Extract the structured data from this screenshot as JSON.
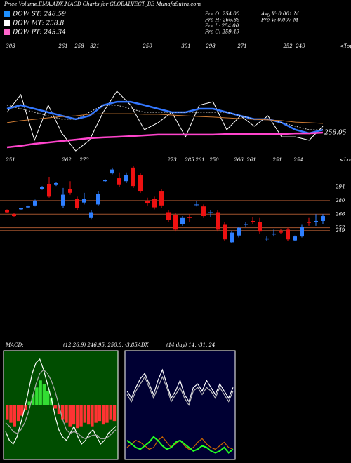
{
  "header": {
    "title": "Price,Volume,EMA,ADX,MACD Charts for GLOBALVECT_BE MunafaSutra.com"
  },
  "legend": [
    {
      "label": "DOW ST: 248.59",
      "color": "#1e90ff"
    },
    {
      "label": "DOW MT: 258.8",
      "color": "#ffffff"
    },
    {
      "label": "DOW PT: 245.34",
      "color": "#ff66cc"
    }
  ],
  "stats": [
    "Pre O: 254.00",
    "Pre H: 266.85",
    "Pre L: 254.00",
    "Pre C: 259.49",
    "Avg V: 0.001 M",
    "Pre V: 0.007 M"
  ],
  "chart_data": [
    {
      "type": "line",
      "ylim": [
        243,
        305
      ],
      "tops": [
        303,
        261,
        258,
        321,
        250,
        301,
        298,
        271,
        252,
        249
      ],
      "tops_label": "<Tops",
      "lows": [
        251,
        262,
        273,
        273,
        285,
        261,
        250,
        266,
        261,
        251,
        254
      ],
      "lows_label": "<Lows",
      "end_label": "258.05",
      "series": [
        {
          "color": "#ffffff",
          "style": "solid",
          "values": [
            269.3,
            278.7,
            254.3,
            273.1,
            258.0,
            248.6,
            254.3,
            269.3,
            280.6,
            273.1,
            259.9,
            263.7,
            269.3,
            256.1,
            273.1,
            274.9,
            259.9,
            267.4,
            261.8,
            267.4,
            256.1,
            256.1,
            254.3,
            261.8
          ]
        },
        {
          "color": "#3377ff",
          "style": "thick",
          "values": [
            271.2,
            273.1,
            271.2,
            269.3,
            267.4,
            265.6,
            267.4,
            273.1,
            274.9,
            274.9,
            273.1,
            271.2,
            269.3,
            269.3,
            271.2,
            271.2,
            269.3,
            267.4,
            265.6,
            265.6,
            263.7,
            259.9,
            258.0,
            259.9
          ]
        },
        {
          "color": "#dddddd",
          "style": "dashed",
          "values": [
            273.1,
            271.2,
            269.3,
            267.4,
            265.6,
            265.6,
            269.3,
            273.1,
            273.1,
            271.2,
            269.3,
            269.3,
            269.3,
            269.3,
            269.3,
            269.3,
            269.3,
            267.4,
            265.6,
            265.6,
            263.7,
            261.8,
            259.9,
            259.9
          ]
        },
        {
          "color": "#cc7a33",
          "style": "solid",
          "values": [
            263.7,
            264.8,
            265.5,
            266.3,
            267.0,
            267.4,
            268.2,
            268.5,
            268.5,
            268.5,
            268.2,
            268.2,
            267.8,
            267.4,
            267.0,
            266.7,
            266.3,
            265.9,
            265.5,
            265.2,
            264.8,
            264.0,
            263.7,
            263.3
          ]
        },
        {
          "color": "#ff44cc",
          "style": "thick",
          "values": [
            250.5,
            251.3,
            252.4,
            253.1,
            253.9,
            254.6,
            255.4,
            255.8,
            256.1,
            256.5,
            256.9,
            257.3,
            257.3,
            257.3,
            257.3,
            257.3,
            257.6,
            257.6,
            257.6,
            257.6,
            257.6,
            258.0,
            258.0,
            258.4
          ]
        }
      ]
    },
    {
      "type": "candlestick",
      "ylim": [
        212,
        324
      ],
      "yticks": [
        294,
        280,
        266,
        252,
        249
      ],
      "grid_color": "#a0522d",
      "up_color": "#2f7fff",
      "down_color": "#ee1111",
      "open": [
        270,
        266,
        271,
        273,
        275,
        292,
        297,
        296,
        275,
        292,
        282,
        278,
        262,
        276,
        300,
        308,
        303,
        300,
        314,
        306,
        280,
        282,
        290,
        268,
        265,
        256,
        263,
        276,
        274,
        267,
        268,
        255,
        237,
        244,
        255,
        259,
        258,
        240,
        245,
        248,
        250,
        239,
        243,
        258,
        258,
        259
      ],
      "close": [
        268,
        264,
        272,
        274,
        280,
        294,
        284,
        298,
        286,
        288,
        272,
        282,
        268,
        287,
        301,
        312,
        296,
        306,
        295,
        290,
        277,
        273,
        275,
        260,
        250,
        262,
        262,
        276,
        264,
        268,
        250,
        240,
        247,
        252,
        256,
        258,
        248,
        241,
        246,
        247,
        240,
        243,
        253,
        257,
        259,
        264
      ],
      "high": [
        271,
        267,
        272,
        275,
        281,
        295,
        304,
        299,
        293,
        300,
        284,
        288,
        270,
        290,
        302,
        314,
        309,
        309,
        316,
        308,
        283,
        284,
        292,
        270,
        267,
        264,
        266,
        280,
        276,
        270,
        270,
        258,
        249,
        253,
        258,
        263,
        262,
        243,
        250,
        251,
        252,
        244,
        255,
        262,
        266,
        266
      ],
      "low": [
        267,
        263,
        270,
        272,
        274,
        291,
        283,
        295,
        272,
        286,
        270,
        276,
        261,
        275,
        299,
        307,
        294,
        298,
        293,
        288,
        275,
        271,
        272,
        258,
        248,
        254,
        258,
        274,
        262,
        263,
        248,
        238,
        236,
        242,
        253,
        256,
        246,
        238,
        243,
        246,
        238,
        238,
        242,
        254,
        254,
        256
      ]
    },
    {
      "type": "macd",
      "title": "MACD:",
      "subtitle": "(12,26,9) 246.95, 250.8, -3.85",
      "ylim": [
        -30,
        30
      ],
      "up_color": "#33dd33",
      "down_color": "#ff3333",
      "histogram": [
        -8,
        -10,
        -12,
        -9,
        -6,
        -3,
        2,
        6,
        10,
        14,
        12,
        8,
        4,
        -2,
        -5,
        -8,
        -10,
        -12,
        -11,
        -13,
        -12,
        -10,
        -11,
        -12,
        -10,
        -9,
        -11,
        -10,
        -8,
        -9
      ],
      "series": [
        {
          "color": "#ffffff",
          "values": [
            -15,
            -20,
            -22,
            -18,
            -10,
            -2,
            8,
            18,
            24,
            26,
            20,
            12,
            4,
            -6,
            -14,
            -18,
            -20,
            -16,
            -12,
            -18,
            -22,
            -20,
            -16,
            -14,
            -18,
            -22,
            -20,
            -16,
            -14,
            -12
          ]
        },
        {
          "color": "#aaaaaa",
          "values": [
            -10,
            -12,
            -15,
            -16,
            -14,
            -10,
            -4,
            4,
            12,
            18,
            20,
            18,
            14,
            8,
            0,
            -8,
            -14,
            -16,
            -15,
            -16,
            -18,
            -19,
            -18,
            -17,
            -17,
            -19,
            -19,
            -18,
            -16,
            -14
          ]
        }
      ]
    },
    {
      "type": "adx",
      "title": "ADX",
      "subtitle": "(14 day) 14, -31, 24",
      "ylim": [
        0,
        60
      ],
      "series": [
        {
          "color": "#ffffff",
          "values": [
            38,
            34,
            40,
            45,
            48,
            42,
            36,
            44,
            50,
            42,
            34,
            38,
            44,
            36,
            32,
            40,
            42,
            38,
            44,
            40,
            36,
            42,
            38,
            34,
            40
          ]
        },
        {
          "color": "#bbbbbb",
          "values": [
            36,
            32,
            38,
            42,
            46,
            40,
            34,
            40,
            46,
            40,
            32,
            36,
            40,
            34,
            30,
            38,
            40,
            36,
            40,
            38,
            34,
            40,
            36,
            32,
            38
          ]
        },
        {
          "color": "#cc6600",
          "values": [
            6,
            8,
            10,
            9,
            7,
            5,
            6,
            10,
            12,
            9,
            6,
            8,
            10,
            7,
            5,
            6,
            9,
            11,
            8,
            6,
            5,
            7,
            9,
            6,
            5
          ]
        },
        {
          "color": "#22ff22",
          "values": [
            10,
            8,
            6,
            5,
            7,
            9,
            12,
            10,
            7,
            5,
            6,
            9,
            10,
            8,
            6,
            4,
            5,
            7,
            6,
            4,
            3,
            4,
            6,
            3,
            5
          ]
        }
      ]
    }
  ]
}
